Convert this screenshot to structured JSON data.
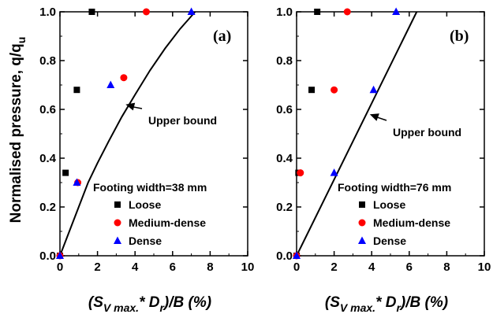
{
  "figure": {
    "ylabel": "Normalised pressure, q/q",
    "ylabel_sub": "u"
  },
  "chart_data": [
    {
      "type": "scatter",
      "panel_label": "(a)",
      "xlabel_parts": [
        "(S",
        "V max.",
        "* D",
        "r",
        ")/B (%)"
      ],
      "xlim": [
        0,
        10
      ],
      "ylim": [
        0,
        1
      ],
      "xticks": [
        0,
        2,
        4,
        6,
        8,
        10
      ],
      "yticks": [
        0.0,
        0.2,
        0.4,
        0.6,
        0.8,
        1.0
      ],
      "legend_title": "Footing width=38 mm",
      "legend_placement": "bottom-right",
      "series": [
        {
          "name": "Loose",
          "marker": "square",
          "color": "#000000",
          "points": [
            [
              0.0,
              0.0
            ],
            [
              0.3,
              0.34
            ],
            [
              0.9,
              0.68
            ],
            [
              1.7,
              1.0
            ]
          ]
        },
        {
          "name": "Medium-dense",
          "marker": "circle",
          "color": "#ff0000",
          "points": [
            [
              0.0,
              0.0
            ],
            [
              0.95,
              0.3
            ],
            [
              3.4,
              0.73
            ],
            [
              4.6,
              1.0
            ]
          ]
        },
        {
          "name": "Dense",
          "marker": "triangle",
          "color": "#0000ff",
          "points": [
            [
              0.0,
              0.0
            ],
            [
              0.9,
              0.3
            ],
            [
              2.7,
              0.7
            ],
            [
              7.0,
              1.0
            ]
          ]
        }
      ],
      "upper_bound": {
        "label": "Upper bound",
        "points": [
          [
            0.0,
            0.0
          ],
          [
            0.5,
            0.1
          ],
          [
            1.0,
            0.2
          ],
          [
            1.5,
            0.3
          ],
          [
            2.0,
            0.38
          ],
          [
            2.6,
            0.47
          ],
          [
            3.3,
            0.57
          ],
          [
            4.0,
            0.66
          ],
          [
            4.8,
            0.76
          ],
          [
            5.6,
            0.85
          ],
          [
            6.4,
            0.93
          ],
          [
            7.2,
            1.0
          ]
        ],
        "arrow_target": [
          3.5,
          0.62
        ]
      }
    },
    {
      "type": "scatter",
      "panel_label": "(b)",
      "xlabel_parts": [
        "(S",
        "V max.",
        "* D",
        "r",
        ")/B (%)"
      ],
      "xlim": [
        0,
        10
      ],
      "ylim": [
        0,
        1
      ],
      "xticks": [
        0,
        2,
        4,
        6,
        8,
        10
      ],
      "yticks": [
        0.0,
        0.2,
        0.4,
        0.6,
        0.8,
        1.0
      ],
      "legend_title": "Footing width=76 mm",
      "legend_placement": "bottom-right",
      "series": [
        {
          "name": "Loose",
          "marker": "square",
          "color": "#000000",
          "points": [
            [
              0.0,
              0.0
            ],
            [
              0.1,
              0.34
            ],
            [
              0.8,
              0.68
            ],
            [
              1.1,
              1.0
            ]
          ]
        },
        {
          "name": "Medium-dense",
          "marker": "circle",
          "color": "#ff0000",
          "points": [
            [
              0.0,
              0.0
            ],
            [
              0.2,
              0.34
            ],
            [
              2.0,
              0.68
            ],
            [
              2.7,
              1.0
            ]
          ]
        },
        {
          "name": "Dense",
          "marker": "triangle",
          "color": "#0000ff",
          "points": [
            [
              0.0,
              0.0
            ],
            [
              2.0,
              0.34
            ],
            [
              4.1,
              0.68
            ],
            [
              5.3,
              1.0
            ]
          ]
        }
      ],
      "upper_bound": {
        "label": "Upper bound",
        "points": [
          [
            0.0,
            0.0
          ],
          [
            6.4,
            1.0
          ]
        ],
        "arrow_target": [
          3.9,
          0.58
        ]
      }
    }
  ]
}
